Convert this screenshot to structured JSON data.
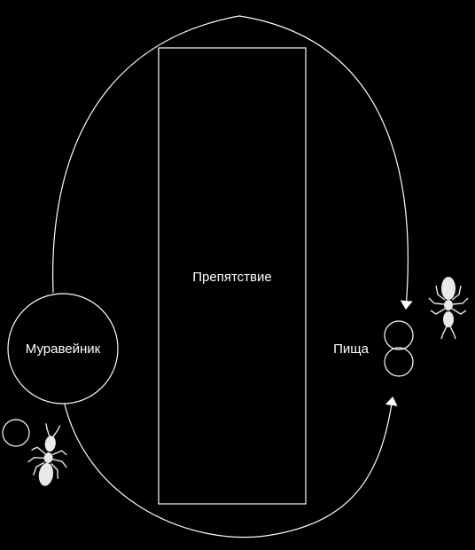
{
  "diagram": {
    "labels": {
      "nest": "Муравейник",
      "obstacle": "Препятствие",
      "food": "Пища"
    },
    "colors": {
      "background": "#000000",
      "stroke": "#ffffff",
      "ant": "#e8e8e8"
    },
    "icons": {
      "ant_near_nest": "ant-icon",
      "ant_near_food": "ant-icon",
      "pheromone_drop": "circle-icon"
    }
  }
}
